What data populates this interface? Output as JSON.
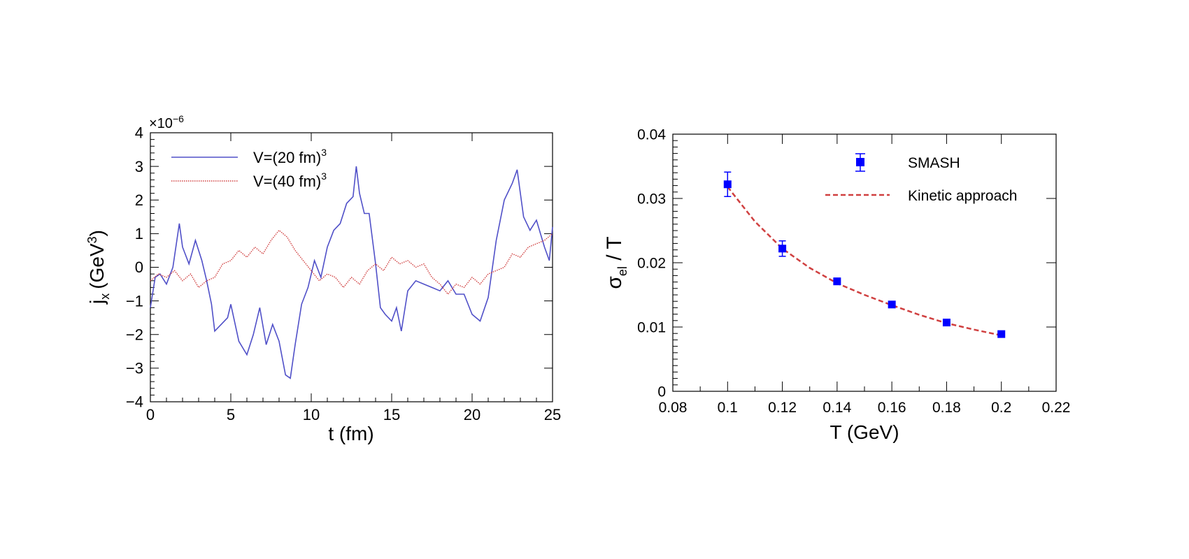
{
  "chart_data": [
    {
      "type": "line",
      "multiplier_label": "×10",
      "multiplier_exponent": "−6",
      "xlabel": "t (fm)",
      "ylabel_main": "j",
      "ylabel_sub": "x",
      "ylabel_unit": "(GeV",
      "ylabel_unit_sup": "3",
      "ylabel_close": ")",
      "xlim": [
        0,
        25
      ],
      "ylim": [
        -4,
        4
      ],
      "x_ticks": [
        0,
        5,
        10,
        15,
        20,
        25
      ],
      "x_tick_labels": [
        "0",
        "5",
        "10",
        "15",
        "20",
        "25"
      ],
      "y_ticks": [
        -4,
        -3,
        -2,
        -1,
        0,
        1,
        2,
        3,
        4
      ],
      "y_tick_labels": [
        "−4",
        "−3",
        "−2",
        "−1",
        "0",
        "1",
        "2",
        "3",
        "4"
      ],
      "grid": false,
      "legend_position": "top-left",
      "series": [
        {
          "name": "V=(20 fm)",
          "name_sup": "3",
          "color": "#5050c8",
          "style": "solid",
          "x": [
            0,
            0.3,
            0.6,
            1.0,
            1.4,
            1.8,
            2.0,
            2.4,
            2.8,
            3.2,
            3.5,
            3.8,
            4.0,
            4.4,
            4.8,
            5.0,
            5.5,
            6.0,
            6.4,
            6.8,
            7.2,
            7.6,
            8.0,
            8.4,
            8.7,
            9.0,
            9.4,
            9.8,
            10.2,
            10.6,
            11.0,
            11.4,
            11.8,
            12.2,
            12.6,
            12.8,
            13.0,
            13.3,
            13.6,
            14.0,
            14.3,
            14.6,
            15.0,
            15.3,
            15.6,
            16.0,
            16.5,
            17.0,
            17.5,
            18.0,
            18.5,
            19.0,
            19.5,
            20.0,
            20.5,
            21.0,
            21.5,
            22.0,
            22.5,
            22.8,
            23.2,
            23.6,
            24.0,
            24.5,
            24.8,
            25.0
          ],
          "y": [
            -1.2,
            -0.3,
            -0.2,
            -0.5,
            0.0,
            1.3,
            0.6,
            0.1,
            0.8,
            0.2,
            -0.4,
            -1.1,
            -1.9,
            -1.7,
            -1.5,
            -1.1,
            -2.2,
            -2.6,
            -2.0,
            -1.2,
            -2.3,
            -1.7,
            -2.2,
            -3.2,
            -3.3,
            -2.3,
            -1.1,
            -0.6,
            0.2,
            -0.3,
            0.6,
            1.1,
            1.3,
            1.9,
            2.1,
            3.0,
            2.2,
            1.6,
            1.6,
            0.1,
            -1.2,
            -1.4,
            -1.6,
            -1.2,
            -1.9,
            -0.7,
            -0.4,
            -0.5,
            -0.6,
            -0.7,
            -0.4,
            -0.8,
            -0.8,
            -1.4,
            -1.6,
            -0.9,
            0.8,
            2.0,
            2.5,
            2.9,
            1.5,
            1.1,
            1.4,
            0.6,
            0.2,
            1.2
          ]
        },
        {
          "name": "V=(40 fm)",
          "name_sup": "3",
          "color": "#d04040",
          "style": "dotted",
          "x": [
            0,
            0.5,
            1.0,
            1.5,
            2.0,
            2.5,
            3.0,
            3.5,
            4.0,
            4.5,
            5.0,
            5.5,
            6.0,
            6.5,
            7.0,
            7.5,
            8.0,
            8.5,
            9.0,
            9.5,
            10.0,
            10.5,
            11.0,
            11.5,
            12.0,
            12.5,
            13.0,
            13.5,
            14.0,
            14.5,
            15.0,
            15.5,
            16.0,
            16.5,
            17.0,
            17.5,
            18.0,
            18.5,
            19.0,
            19.5,
            20.0,
            20.5,
            21.0,
            21.5,
            22.0,
            22.5,
            23.0,
            23.5,
            24.0,
            24.5,
            25.0
          ],
          "y": [
            -0.4,
            -0.2,
            -0.3,
            -0.1,
            -0.4,
            -0.2,
            -0.6,
            -0.4,
            -0.3,
            0.1,
            0.2,
            0.5,
            0.3,
            0.6,
            0.4,
            0.8,
            1.1,
            0.9,
            0.5,
            0.2,
            -0.1,
            -0.4,
            -0.2,
            -0.3,
            -0.6,
            -0.3,
            -0.5,
            -0.1,
            0.1,
            -0.1,
            0.3,
            0.1,
            0.2,
            0.0,
            0.1,
            -0.3,
            -0.5,
            -0.8,
            -0.5,
            -0.6,
            -0.3,
            -0.5,
            -0.2,
            -0.1,
            0.0,
            0.4,
            0.3,
            0.6,
            0.7,
            0.8,
            1.0
          ]
        }
      ]
    },
    {
      "type": "scatter",
      "xlabel": "T (GeV)",
      "ylabel_main": "σ",
      "ylabel_sub": "el",
      "ylabel_rest": " / T",
      "xlim": [
        0.08,
        0.22
      ],
      "ylim": [
        0,
        0.04
      ],
      "x_ticks": [
        0.08,
        0.1,
        0.12,
        0.14,
        0.16,
        0.18,
        0.2,
        0.22
      ],
      "x_tick_labels": [
        "0.08",
        "0.1",
        "0.12",
        "0.14",
        "0.16",
        "0.18",
        "0.2",
        "0.22"
      ],
      "y_ticks": [
        0,
        0.01,
        0.02,
        0.03,
        0.04
      ],
      "y_tick_labels": [
        "0",
        "0.01",
        "0.02",
        "0.03",
        "0.04"
      ],
      "grid": false,
      "legend_position": "top-right",
      "series": [
        {
          "name": "SMASH",
          "color": "#0000ff",
          "marker": "square",
          "x": [
            0.1,
            0.12,
            0.14,
            0.16,
            0.18,
            0.2
          ],
          "y": [
            0.0322,
            0.0222,
            0.0171,
            0.0135,
            0.0107,
            0.0089
          ],
          "yerr": [
            0.0019,
            0.0012,
            0.0005,
            0.0003,
            0.0003,
            0.0002
          ]
        },
        {
          "name": "Kinetic approach",
          "color": "#d04040",
          "style": "dashed",
          "x": [
            0.1,
            0.11,
            0.12,
            0.13,
            0.14,
            0.15,
            0.16,
            0.17,
            0.18,
            0.19,
            0.2
          ],
          "y": [
            0.0318,
            0.0264,
            0.0222,
            0.0192,
            0.0168,
            0.015,
            0.0134,
            0.0119,
            0.0106,
            0.0096,
            0.0087
          ]
        }
      ]
    }
  ]
}
